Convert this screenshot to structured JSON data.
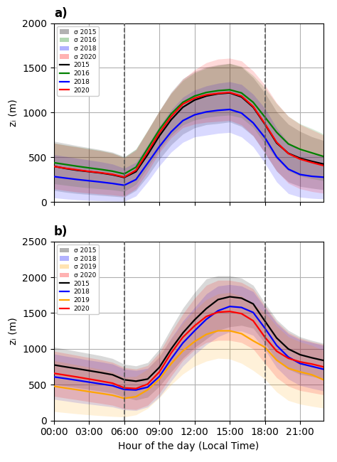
{
  "chart_data": [
    {
      "type": "line",
      "title": "a)",
      "x": [
        0,
        1,
        2,
        3,
        4,
        5,
        6,
        7,
        8,
        9,
        10,
        11,
        12,
        13,
        14,
        15,
        16,
        17,
        18,
        19,
        20,
        21,
        22,
        23
      ],
      "xlim": [
        0,
        23
      ],
      "xticks": [
        0,
        3,
        6,
        9,
        12,
        15,
        18,
        21
      ],
      "ylim": [
        0,
        2000
      ],
      "yticks": [
        0,
        500,
        1000,
        1500,
        2000
      ],
      "ylabel": "zᵢ (m)",
      "tick_labels": "y",
      "grid": true,
      "legend": "upper left",
      "vlines": [
        6,
        18
      ],
      "series": [
        {
          "name": "2015",
          "color": "#000000",
          "values": [
            400,
            375,
            355,
            340,
            325,
            305,
            275,
            340,
            530,
            740,
            920,
            1060,
            1140,
            1185,
            1210,
            1220,
            1175,
            1060,
            870,
            660,
            545,
            490,
            455,
            425
          ],
          "band": {
            "name": "σ 2015",
            "upper": [
              680,
              655,
              630,
              608,
              585,
              558,
              508,
              590,
              800,
              1020,
              1230,
              1380,
              1460,
              1510,
              1535,
              1550,
              1510,
              1390,
              1220,
              1010,
              870,
              790,
              730,
              688
            ],
            "lower": [
              130,
              110,
              95,
              85,
              75,
              65,
              55,
              130,
              290,
              480,
              640,
              760,
              830,
              865,
              878,
              895,
              845,
              738,
              545,
              345,
              225,
              175,
              155,
              138
            ]
          }
        },
        {
          "name": "2016",
          "color": "#008000",
          "values": [
            440,
            420,
            400,
            382,
            365,
            345,
            315,
            390,
            600,
            810,
            985,
            1115,
            1185,
            1225,
            1245,
            1255,
            1220,
            1115,
            950,
            780,
            650,
            590,
            550,
            510
          ],
          "band": {
            "name": "σ 2016",
            "upper": [
              660,
              638,
              618,
              598,
              576,
              548,
              500,
              595,
              805,
              1020,
              1215,
              1358,
              1445,
              1498,
              1528,
              1548,
              1518,
              1415,
              1275,
              1100,
              958,
              875,
              822,
              762
            ],
            "lower": [
              205,
              188,
              172,
              158,
              148,
              136,
              118,
              198,
              388,
              585,
              745,
              862,
              916,
              945,
              962,
              972,
              942,
              835,
              652,
              478,
              348,
              290,
              262,
              238
            ]
          }
        },
        {
          "name": "2018",
          "color": "#0000ff",
          "values": [
            285,
            268,
            252,
            238,
            224,
            208,
            188,
            252,
            435,
            620,
            785,
            910,
            975,
            1008,
            1025,
            1035,
            995,
            885,
            720,
            505,
            368,
            308,
            288,
            278
          ],
          "band": {
            "name": "σ 2018",
            "upper": [
              530,
              510,
              490,
              470,
              450,
              425,
              378,
              445,
              638,
              848,
              1030,
              1172,
              1252,
              1298,
              1328,
              1345,
              1315,
              1205,
              1048,
              828,
              665,
              575,
              535,
              515
            ],
            "lower": [
              48,
              35,
              25,
              18,
              14,
              10,
              8,
              68,
              225,
              405,
              558,
              668,
              728,
              748,
              768,
              778,
              728,
              618,
              435,
              225,
              95,
              55,
              42,
              35
            ]
          }
        },
        {
          "name": "2020",
          "color": "#ff0000",
          "values": [
            398,
            378,
            360,
            342,
            328,
            310,
            280,
            355,
            560,
            775,
            955,
            1095,
            1162,
            1198,
            1215,
            1225,
            1185,
            1068,
            875,
            668,
            542,
            480,
            442,
            408
          ],
          "band": {
            "name": "σ 2020",
            "upper": [
              658,
              635,
              615,
              592,
              572,
              545,
              495,
              580,
              800,
              1020,
              1218,
              1372,
              1478,
              1558,
              1598,
              1608,
              1578,
              1465,
              1308,
              1108,
              958,
              868,
              808,
              748
            ],
            "lower": [
              148,
              128,
              112,
              100,
              90,
              80,
              65,
              148,
              338,
              555,
              718,
              832,
              872,
              892,
              902,
              912,
              862,
              742,
              550,
              348,
              210,
              148,
              118,
              98
            ]
          }
        }
      ]
    },
    {
      "type": "line",
      "title": "b)",
      "x": [
        0,
        1,
        2,
        3,
        4,
        5,
        6,
        7,
        8,
        9,
        10,
        11,
        12,
        13,
        14,
        15,
        16,
        17,
        18,
        19,
        20,
        21,
        22,
        23
      ],
      "xlim": [
        0,
        23
      ],
      "xticks": [
        {
          "value": 0,
          "label": "00:00"
        },
        {
          "value": 3,
          "label": "03:00"
        },
        {
          "value": 6,
          "label": "06:00"
        },
        {
          "value": 9,
          "label": "09:00"
        },
        {
          "value": 12,
          "label": "12:00"
        },
        {
          "value": 15,
          "label": "15:00"
        },
        {
          "value": 18,
          "label": "18:00"
        },
        {
          "value": 21,
          "label": "21:00"
        }
      ],
      "ylim": [
        0,
        2500
      ],
      "yticks": [
        0,
        500,
        1000,
        1500,
        2000,
        2500
      ],
      "xlabel": "Hour of the day (Local Time)",
      "ylabel": "zᵢ (m)",
      "grid": true,
      "legend": "upper left",
      "vlines": [
        6,
        18
      ],
      "series": [
        {
          "name": "2015",
          "color": "#000000",
          "values": [
            775,
            748,
            722,
            695,
            668,
            638,
            568,
            548,
            578,
            742,
            998,
            1222,
            1405,
            1562,
            1688,
            1728,
            1708,
            1628,
            1388,
            1152,
            998,
            918,
            875,
            838
          ],
          "band": {
            "name": "σ 2015",
            "upper": [
              1025,
              995,
              965,
              935,
              905,
              865,
              785,
              762,
              808,
              998,
              1288,
              1568,
              1788,
              1978,
              2020,
              2020,
              1988,
              1888,
              1638,
              1408,
              1258,
              1168,
              1118,
              1078
            ],
            "lower": [
              505,
              480,
              458,
              432,
              408,
              382,
              328,
              285,
              325,
              478,
              678,
              868,
              1018,
              1138,
              1258,
              1308,
              1328,
              1288,
              1078,
              845,
              715,
              645,
              615,
              585
            ]
          }
        },
        {
          "name": "2018",
          "color": "#0000ff",
          "values": [
            608,
            585,
            560,
            535,
            510,
            485,
            432,
            425,
            465,
            615,
            858,
            1082,
            1252,
            1412,
            1532,
            1592,
            1578,
            1508,
            1288,
            1048,
            885,
            795,
            755,
            715
          ],
          "band": {
            "name": "σ 2018",
            "upper": [
              928,
              898,
              872,
              842,
              818,
              788,
              718,
              698,
              728,
              888,
              1148,
              1388,
              1578,
              1768,
              1878,
              1898,
              1878,
              1798,
              1578,
              1358,
              1208,
              1128,
              1088,
              1048
            ],
            "lower": [
              295,
              272,
              248,
              228,
              208,
              188,
              148,
              138,
              188,
              328,
              548,
              758,
              918,
              1058,
              1168,
              1238,
              1248,
              1188,
              988,
              738,
              578,
              488,
              448,
              412
            ]
          }
        },
        {
          "name": "2019",
          "color": "#ffa500",
          "values": [
            478,
            452,
            428,
            402,
            378,
            352,
            308,
            332,
            428,
            578,
            792,
            972,
            1102,
            1202,
            1252,
            1252,
            1212,
            1112,
            1022,
            842,
            728,
            678,
            638,
            568
          ],
          "band": {
            "name": "σ 2019",
            "upper": [
              835,
              805,
              775,
              745,
              715,
              675,
              605,
              615,
              718,
              908,
              1138,
              1358,
              1538,
              1688,
              1768,
              1788,
              1738,
              1628,
              1508,
              1318,
              1168,
              1098,
              1048,
              978
            ],
            "lower": [
              125,
              108,
              92,
              78,
              66,
              56,
              48,
              78,
              168,
              318,
              498,
              648,
              758,
              828,
              868,
              858,
              798,
              698,
              578,
              398,
              278,
              228,
              198,
              172
            ]
          }
        },
        {
          "name": "2020",
          "color": "#ff0000",
          "values": [
            658,
            632,
            606,
            578,
            550,
            520,
            455,
            445,
            508,
            678,
            942,
            1162,
            1322,
            1452,
            1512,
            1522,
            1492,
            1392,
            1162,
            968,
            868,
            818,
            788,
            748
          ],
          "band": {
            "name": "σ 2020",
            "upper": [
              968,
              938,
              908,
              878,
              848,
              812,
              738,
              718,
              768,
              948,
              1228,
              1488,
              1708,
              1888,
              1958,
              1958,
              1928,
              1838,
              1598,
              1378,
              1228,
              1148,
              1098,
              1062
            ],
            "lower": [
              338,
              312,
              288,
              262,
              238,
              212,
              162,
              152,
              212,
              378,
              618,
              838,
              988,
              1088,
              1118,
              1118,
              1088,
              998,
              798,
              598,
              478,
              418,
              388,
              358
            ]
          }
        }
      ]
    }
  ]
}
